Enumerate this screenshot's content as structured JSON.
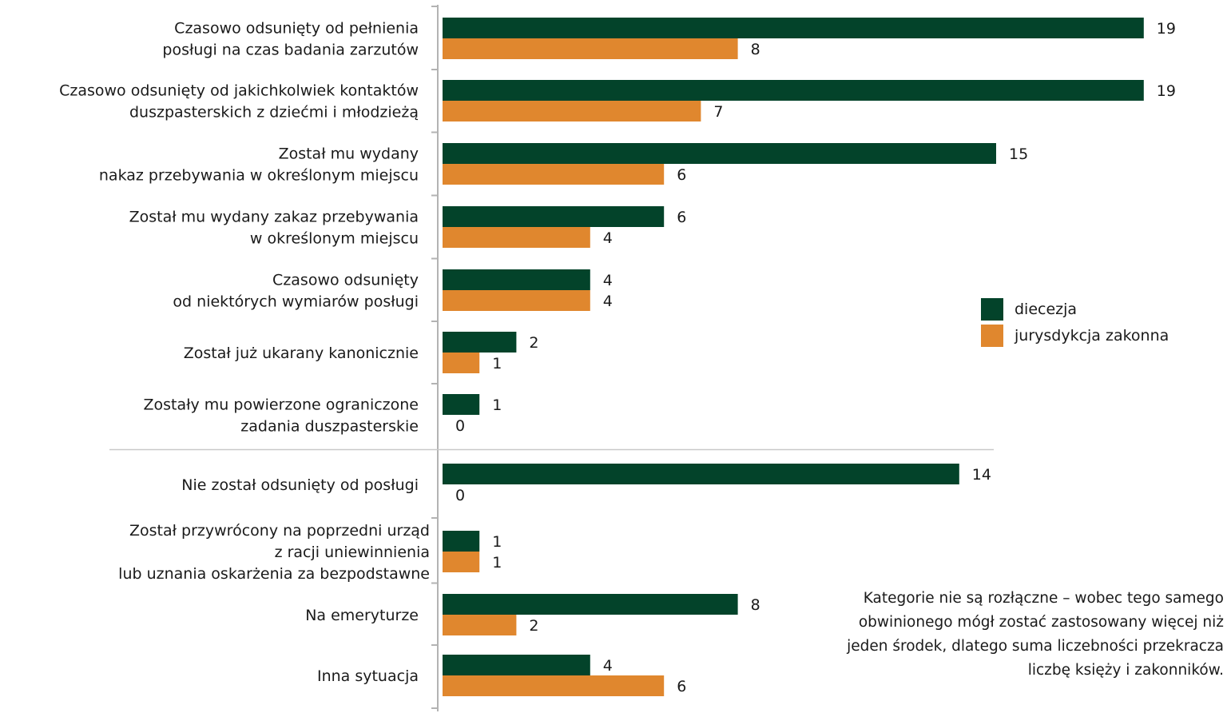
{
  "chart_data": {
    "type": "bar",
    "orientation": "horizontal",
    "categories": [
      [
        "Czasowo odsunięty od pełnienia",
        "posługi na czas badania zarzutów"
      ],
      [
        "Czasowo odsunięty od jakichkolwiek kontaktów",
        "duszpasterskich z dziećmi i młodzieżą"
      ],
      [
        "Został mu wydany",
        "nakaz przebywania w określonym miejscu"
      ],
      [
        "Został mu wydany zakaz przebywania",
        "w określonym miejscu"
      ],
      [
        "Czasowo odsunięty",
        "od niektórych wymiarów posługi"
      ],
      [
        "Został już ukarany kanonicznie"
      ],
      [
        "Zostały mu powierzone ograniczone",
        "zadania duszpasterskie"
      ],
      [
        "Nie został odsunięty od posługi"
      ],
      [
        "Został przywrócony na poprzedni urząd",
        "z racji uniewinnienia",
        "lub uznania oskarżenia za bezpodstawne"
      ],
      [
        "Na emeryturze"
      ],
      [
        "Inna sytuacja"
      ]
    ],
    "series": [
      {
        "name": "diecezja",
        "color": "#03432a",
        "values": [
          19,
          19,
          15,
          6,
          4,
          2,
          1,
          14,
          1,
          8,
          4
        ]
      },
      {
        "name": "jurysdykcja zakonna",
        "color": "#e0872e",
        "values": [
          8,
          7,
          6,
          4,
          4,
          1,
          0,
          0,
          1,
          2,
          6
        ]
      }
    ],
    "legend_position": "right",
    "grid": false,
    "separator_after_index": 6
  },
  "legend": {
    "items": [
      {
        "label": "diecezja",
        "color": "#03432a"
      },
      {
        "label": "jurysdykcja zakonna",
        "color": "#e0872e"
      }
    ]
  },
  "note": {
    "lines": [
      "Kategorie nie są rozłączne – wobec tego samego",
      "obwinionego mógł zostać zastosowany więcej niż",
      "jeden środek, dlatego suma liczebności przekracza",
      "liczbę księży i zakonników."
    ]
  }
}
